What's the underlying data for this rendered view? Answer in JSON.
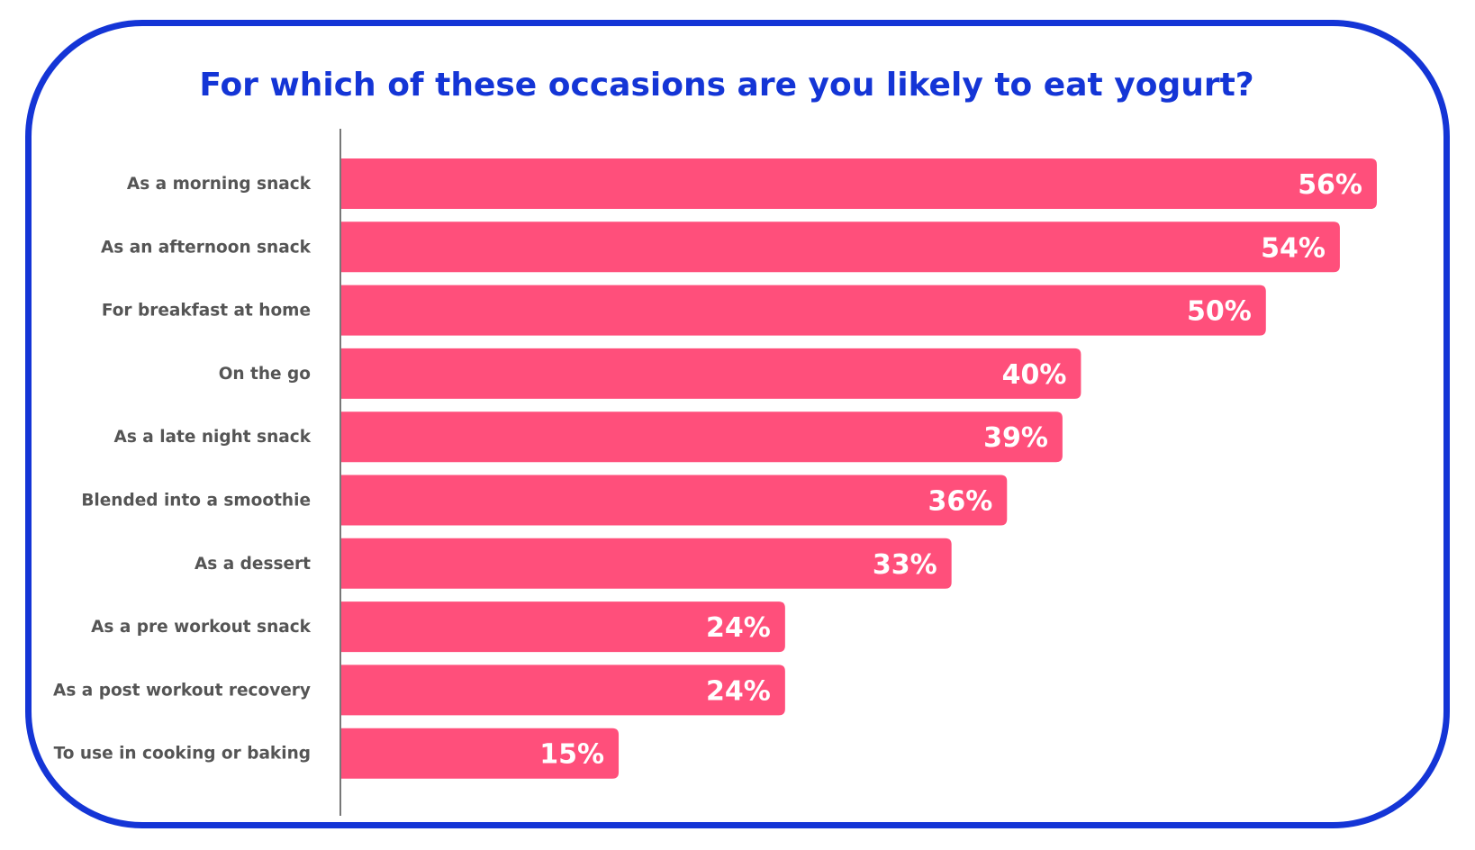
{
  "chart_data": {
    "type": "bar",
    "orientation": "horizontal",
    "title": "For which of these occasions are you likely to eat yogurt?",
    "categories": [
      "As a morning snack",
      "As an afternoon snack",
      "For breakfast at home",
      "On the go",
      "As a late night snack",
      "Blended into a smoothie",
      "As a dessert",
      "As a pre workout snack",
      "As a post workout recovery",
      "To use in cooking or baking"
    ],
    "values": [
      56,
      54,
      50,
      40,
      39,
      36,
      33,
      24,
      24,
      15
    ],
    "value_labels": [
      "56%",
      "54%",
      "50%",
      "40%",
      "39%",
      "36%",
      "33%",
      "24%",
      "24%",
      "15%"
    ],
    "unit": "%",
    "xlim": [
      0,
      56
    ],
    "grid": false,
    "legend": "none"
  },
  "colors": {
    "bar": "#ff4f7b",
    "title": "#1435d6",
    "frame": "#1435d6",
    "axis": "#777777",
    "category_text": "#555555",
    "value_text": "#ffffff"
  }
}
